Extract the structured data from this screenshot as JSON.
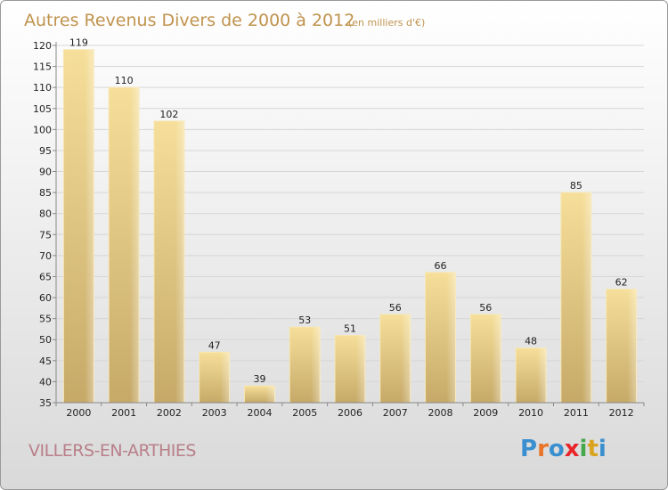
{
  "chart_data": {
    "type": "bar",
    "title": "Autres Revenus Divers de 2000 à 2012",
    "subtitle": "(en milliers d'€)",
    "categories": [
      "2000",
      "2001",
      "2002",
      "2003",
      "2004",
      "2005",
      "2006",
      "2007",
      "2008",
      "2009",
      "2010",
      "2011",
      "2012"
    ],
    "values": [
      119,
      110,
      102,
      47,
      39,
      53,
      51,
      56,
      66,
      56,
      48,
      85,
      62
    ],
    "ylim": [
      35,
      120
    ],
    "yticks": [
      35,
      40,
      45,
      50,
      55,
      60,
      65,
      70,
      75,
      80,
      85,
      90,
      95,
      100,
      105,
      110,
      115,
      120
    ],
    "grid": true,
    "xlabel": "",
    "ylabel": "",
    "colors": {
      "bar": "#f3d98d",
      "title": "#c0934e"
    }
  },
  "footer": {
    "commune": "VILLERS-EN-ARTHIES",
    "logo": "Proxiti",
    "logo_colors": [
      "#3a8fd0",
      "#e8742a",
      "#3a8fd0",
      "#e8242a",
      "#46a84a",
      "#d9a31c",
      "#3a8fd0"
    ]
  }
}
